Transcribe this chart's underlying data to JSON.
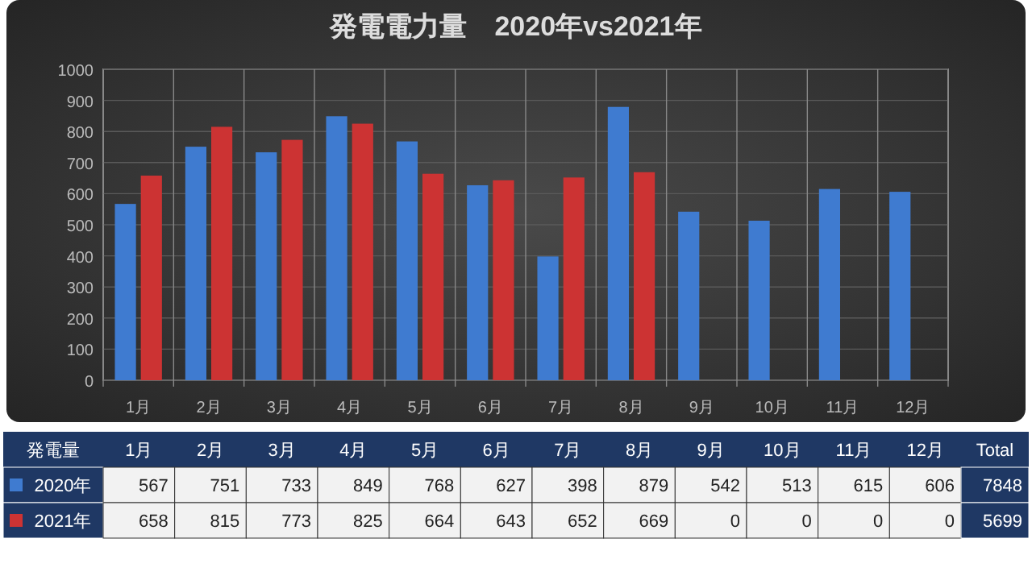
{
  "chart_data": {
    "type": "bar",
    "title": "発電電力量　2020年vs2021年",
    "categories": [
      "1月",
      "2月",
      "3月",
      "4月",
      "5月",
      "6月",
      "7月",
      "8月",
      "9月",
      "10月",
      "11月",
      "12月"
    ],
    "series": [
      {
        "name": "2020年",
        "color": "#3f7bd0",
        "values": [
          567,
          751,
          733,
          849,
          768,
          627,
          398,
          879,
          542,
          513,
          615,
          606
        ]
      },
      {
        "name": "2021年",
        "color": "#cc3333",
        "values": [
          658,
          815,
          773,
          825,
          664,
          643,
          652,
          669,
          0,
          0,
          0,
          0
        ]
      }
    ],
    "ylim": [
      0,
      1000
    ],
    "yticks": [
      0,
      100,
      200,
      300,
      400,
      500,
      600,
      700,
      800,
      900,
      1000
    ],
    "grid": true,
    "data_labels": true,
    "legend": "bottom left",
    "annotations": [
      "発電量",
      "Total",
      "7848",
      "5699"
    ]
  }
}
